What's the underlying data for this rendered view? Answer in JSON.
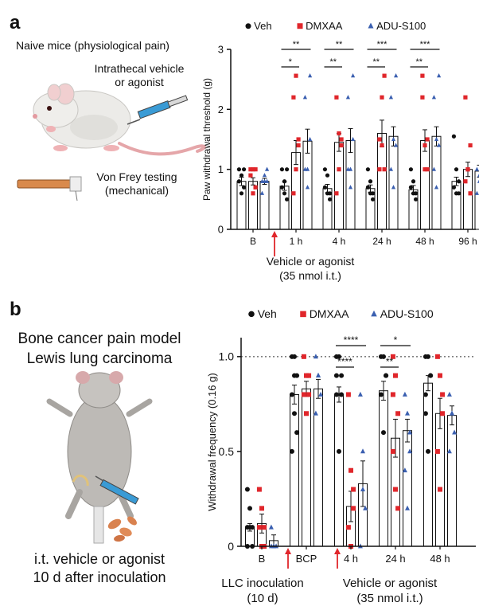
{
  "panels": {
    "a": {
      "letter": "a",
      "title": "Naive mice (physiological pain)",
      "injection": [
        "Intrathecal vehicle",
        "or agonist"
      ],
      "testing": [
        "Von Frey testing",
        "(mechanical)"
      ],
      "vehicle_label": [
        "Vehicle or agonist",
        "(35 nmol i.t.)"
      ]
    },
    "b": {
      "letter": "b",
      "title": [
        "Bone cancer pain model",
        "Lewis lung carcinoma"
      ],
      "treatment": [
        "i.t. vehicle or agonist",
        "10 d after inoculation"
      ],
      "llc_label": [
        "LLC inoculation",
        "(10 d)"
      ],
      "vehicle_label": [
        "Vehicle or agonist",
        "(35 nmol i.t.)"
      ]
    }
  },
  "legend": [
    {
      "name": "Veh",
      "marker": "circle",
      "color": "#111111"
    },
    {
      "name": "DMXAA",
      "marker": "square",
      "color": "#e0262b"
    },
    {
      "name": "ADU-S100",
      "marker": "triangle",
      "color": "#3a5fb0"
    }
  ],
  "chart_data": [
    {
      "id": "a",
      "type": "bar",
      "ylabel": "Paw withdrawal threshold (g)",
      "ylim": [
        0,
        3
      ],
      "yticks": [
        0,
        1,
        2,
        3
      ],
      "categories": [
        "B",
        "1 h",
        "4 h",
        "24 h",
        "48 h",
        "96 h"
      ],
      "series": [
        {
          "name": "Veh",
          "values": [
            0.8,
            0.72,
            0.68,
            0.68,
            0.66,
            0.8
          ],
          "errors": [
            0.07,
            0.07,
            0.07,
            0.06,
            0.07,
            0.07
          ]
        },
        {
          "name": "DMXAA",
          "values": [
            0.8,
            1.28,
            1.45,
            1.6,
            1.48,
            1.0
          ],
          "errors": [
            0.06,
            0.2,
            0.15,
            0.22,
            0.18,
            0.12
          ]
        },
        {
          "name": "ADU-S100",
          "values": [
            0.8,
            1.47,
            1.48,
            1.55,
            1.55,
            0.97
          ],
          "errors": [
            0.05,
            0.2,
            0.2,
            0.16,
            0.16,
            0.1
          ]
        }
      ],
      "points": [
        [
          [
            1,
            0.6,
            0.7,
            0.8,
            0.9,
            1
          ],
          [
            1,
            0.6,
            0.7,
            0.9,
            1,
            1
          ],
          [
            0.6,
            0.8,
            1,
            0.8,
            0.9,
            0.8
          ]
        ],
        [
          [
            1,
            0.6,
            0.5,
            0.7,
            0.8,
            1
          ],
          [
            0.6,
            1,
            1.5,
            2.2,
            2.56,
            1.4
          ],
          [
            1,
            0.7,
            2.56,
            2.2,
            1,
            1.5
          ]
        ],
        [
          [
            1,
            0.6,
            0.5,
            0.7,
            0.9,
            0.6
          ],
          [
            0.6,
            1,
            1.5,
            2.2,
            1.6,
            1.4
          ],
          [
            1,
            0.7,
            2.56,
            2.2,
            1,
            1.5
          ]
        ],
        [
          [
            1,
            0.6,
            0.5,
            0.7,
            0.8,
            0.6
          ],
          [
            1,
            2.2,
            2.56,
            1.5,
            1.4,
            1
          ],
          [
            1,
            0.7,
            2.56,
            2.2,
            1.5,
            1.4
          ]
        ],
        [
          [
            1,
            0.6,
            0.5,
            0.7,
            0.8,
            0.6
          ],
          [
            2.56,
            1,
            1.5,
            2.2,
            1.4,
            1
          ],
          [
            1,
            0.7,
            2.56,
            2.2,
            1.5,
            1.4
          ]
        ],
        [
          [
            1.55,
            1,
            0.6,
            0.7,
            0.6,
            0.8
          ],
          [
            2.2,
            1,
            0.6,
            0.8,
            1,
            1.4
          ],
          [
            0.6,
            0.8,
            1.4,
            1,
            0.9,
            1
          ]
        ]
      ],
      "significance": [
        {
          "group": 1,
          "upper": "**",
          "lower": "*"
        },
        {
          "group": 2,
          "upper": "**",
          "lower": "**"
        },
        {
          "group": 3,
          "upper": "***",
          "lower": "**"
        },
        {
          "group": 4,
          "upper": "***",
          "lower": "**"
        }
      ]
    },
    {
      "id": "b",
      "type": "bar",
      "ylabel": "Withdrawal frequency (0.16 g)",
      "ylim": [
        0,
        1.1
      ],
      "yticks": [
        0,
        0.5,
        1.0
      ],
      "ytick_labels": [
        "0",
        "0.5",
        "1.0"
      ],
      "reference_line": 1.0,
      "categories": [
        "B",
        "BCP",
        "4 h",
        "24 h",
        "48 h"
      ],
      "series": [
        {
          "name": "Veh",
          "values": [
            0.1,
            0.8,
            0.8,
            0.82,
            0.86
          ],
          "errors": [
            0.02,
            0.05,
            0.04,
            0.05,
            0.04
          ]
        },
        {
          "name": "DMXAA",
          "values": [
            0.12,
            0.83,
            0.21,
            0.57,
            0.7
          ],
          "errors": [
            0.05,
            0.04,
            0.08,
            0.1,
            0.08
          ]
        },
        {
          "name": "ADU-S100",
          "values": [
            0.03,
            0.83,
            0.33,
            0.61,
            0.69
          ],
          "errors": [
            0.03,
            0.05,
            0.12,
            0.06,
            0.05
          ]
        }
      ],
      "points": [
        [
          [
            0.3,
            0.2,
            0.1,
            0.1,
            0.1,
            0,
            0
          ],
          [
            0.3,
            0.2,
            0.1,
            0.1,
            0,
            0
          ],
          [
            0.1,
            0,
            0,
            0,
            0
          ]
        ],
        [
          [
            1,
            1,
            0.9,
            0.8,
            0.7,
            0.6,
            0.5,
            0.9
          ],
          [
            1,
            0.9,
            0.8,
            0.8,
            0.7,
            0.9
          ],
          [
            1,
            0.9,
            0.8,
            0.7,
            0.9
          ]
        ],
        [
          [
            1,
            1,
            0.9,
            0.8,
            0.5,
            0.8,
            0.9
          ],
          [
            0.8,
            0.4,
            0.2,
            0.1,
            0,
            0.3
          ],
          [
            0.8,
            0.5,
            0.2,
            0,
            0.3
          ]
        ],
        [
          [
            1,
            1,
            0.9,
            0.8,
            0.6,
            0.9
          ],
          [
            1,
            0.9,
            0.7,
            0.5,
            0.3,
            0.2,
            0.8
          ],
          [
            0.8,
            0.7,
            0.5,
            0.4,
            0.2,
            0.6
          ]
        ],
        [
          [
            1,
            1,
            0.9,
            0.8,
            0.5,
            0.9,
            0.7
          ],
          [
            1,
            0.9,
            0.7,
            0.5,
            0.3,
            0.8
          ],
          [
            0.8,
            0.7,
            0.6,
            0.5,
            0.7
          ]
        ]
      ],
      "significance": [
        {
          "group": 2,
          "upper": "****",
          "lower": "****"
        },
        {
          "group": 3,
          "upper": "*",
          "lower": "**"
        }
      ]
    }
  ]
}
